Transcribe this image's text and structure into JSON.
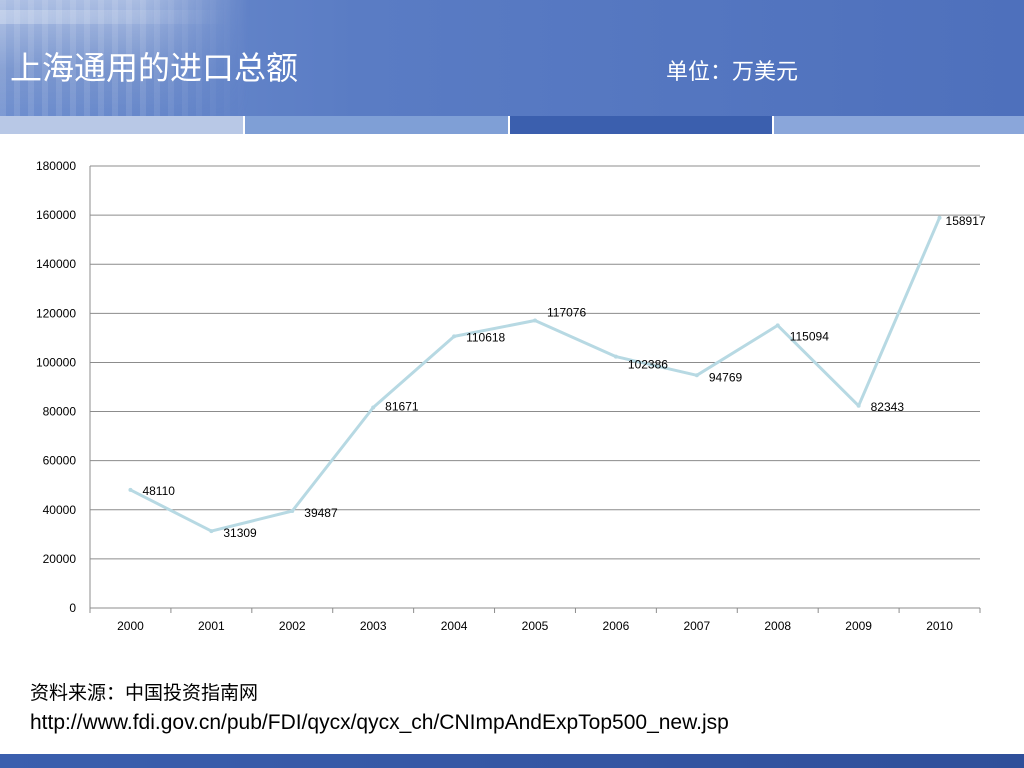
{
  "header": {
    "title": "上海通用的进口总额",
    "unit": "单位：万美元"
  },
  "source": {
    "label": "资料来源：中国投资指南网",
    "url": "http://www.fdi.gov.cn/pub/FDI/qycx/qycx_ch/CNImpAndExpTop500_new.jsp"
  },
  "colors": {
    "header_bg": "#5a7cc4",
    "line": "#b7d9e3",
    "grid": "#8c8c8c",
    "footer": "#3b5fae"
  },
  "chart_data": {
    "type": "line",
    "x": [
      "2000",
      "2001",
      "2002",
      "2003",
      "2004",
      "2005",
      "2006",
      "2007",
      "2008",
      "2009",
      "2010"
    ],
    "series": [
      {
        "values": [
          48110,
          31309,
          39487,
          81671,
          110618,
          117076,
          102386,
          94769,
          115094,
          82343,
          158917
        ]
      }
    ],
    "data_labels": [
      "48110",
      "31309",
      "39487",
      "81671",
      "110618",
      "117076",
      "102386",
      "94769",
      "115094",
      "82343",
      "158917"
    ],
    "y_ticks": [
      0,
      20000,
      40000,
      60000,
      80000,
      100000,
      120000,
      140000,
      160000,
      180000
    ],
    "ylim": [
      0,
      180000
    ],
    "grid": true,
    "legend": "none",
    "title": "",
    "xlabel": "",
    "ylabel": ""
  }
}
